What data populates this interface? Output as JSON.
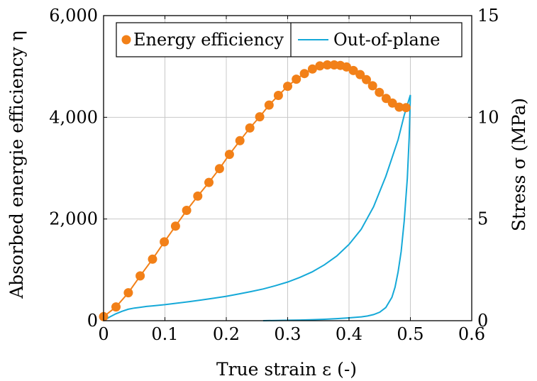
{
  "chart_data": {
    "type": "line",
    "xlabel": "True strain ε (-)",
    "ylabel_left": "Absorbed energie efficiency η",
    "ylabel_right": "Stress σ (MPa)",
    "xlim": [
      0,
      0.6
    ],
    "ylim_left": [
      0,
      6000
    ],
    "ylim_right": [
      0,
      15
    ],
    "x_ticks": [
      "0",
      "0.1",
      "0.2",
      "0.3",
      "0.4",
      "0.5",
      "0.6"
    ],
    "y_left_ticks": [
      "0",
      "2,000",
      "4,000",
      "6,000"
    ],
    "y_right_ticks": [
      "0",
      "5",
      "10",
      "15"
    ],
    "grid": true,
    "legend_position": "top",
    "colors": {
      "energy": "#f28018",
      "stress": "#15a9d8"
    },
    "series": [
      {
        "name": "Energy efficiency",
        "axis": "left",
        "marker": "circle",
        "x": [
          0,
          0.0202,
          0.0404,
          0.0596,
          0.0798,
          0.099,
          0.1172,
          0.1354,
          0.1535,
          0.1717,
          0.1889,
          0.2051,
          0.2222,
          0.2384,
          0.2545,
          0.2697,
          0.2848,
          0.3,
          0.3141,
          0.3273,
          0.3404,
          0.3525,
          0.3646,
          0.3758,
          0.3859,
          0.396,
          0.4071,
          0.4182,
          0.4283,
          0.4384,
          0.4495,
          0.4606,
          0.4707,
          0.4818,
          0.4929
        ],
        "y": [
          80,
          270,
          550,
          880,
          1210,
          1550,
          1860,
          2170,
          2450,
          2720,
          2990,
          3270,
          3540,
          3790,
          4010,
          4240,
          4430,
          4610,
          4750,
          4860,
          4950,
          5010,
          5030,
          5030,
          5020,
          4990,
          4920,
          4840,
          4740,
          4620,
          4490,
          4370,
          4280,
          4200,
          4190
        ]
      },
      {
        "name": "Out-of-plane",
        "axis": "right",
        "loading": {
          "x": [
            0,
            0.01,
            0.02,
            0.03,
            0.04,
            0.05,
            0.06,
            0.07,
            0.08,
            0.1,
            0.12,
            0.14,
            0.16,
            0.18,
            0.2,
            0.22,
            0.24,
            0.26,
            0.28,
            0.3,
            0.32,
            0.34,
            0.36,
            0.38,
            0.4,
            0.42,
            0.44,
            0.46,
            0.48,
            0.49,
            0.5
          ],
          "y": [
            0,
            0.18,
            0.34,
            0.46,
            0.56,
            0.62,
            0.66,
            0.7,
            0.73,
            0.79,
            0.86,
            0.94,
            1.02,
            1.11,
            1.2,
            1.31,
            1.43,
            1.56,
            1.72,
            1.9,
            2.13,
            2.4,
            2.75,
            3.18,
            3.75,
            4.5,
            5.6,
            7.1,
            8.9,
            10.1,
            11.1
          ]
        },
        "unloading": {
          "x": [
            0.5,
            0.498,
            0.495,
            0.49,
            0.485,
            0.48,
            0.475,
            0.47,
            0.46,
            0.45,
            0.44,
            0.43,
            0.42,
            0.4,
            0.38,
            0.36,
            0.34,
            0.32,
            0.3,
            0.28,
            0.26
          ],
          "y": [
            11.1,
            9.0,
            7.0,
            4.9,
            3.4,
            2.4,
            1.65,
            1.15,
            0.65,
            0.42,
            0.3,
            0.23,
            0.19,
            0.14,
            0.1,
            0.07,
            0.05,
            0.03,
            0.02,
            0.01,
            0
          ]
        }
      }
    ]
  }
}
